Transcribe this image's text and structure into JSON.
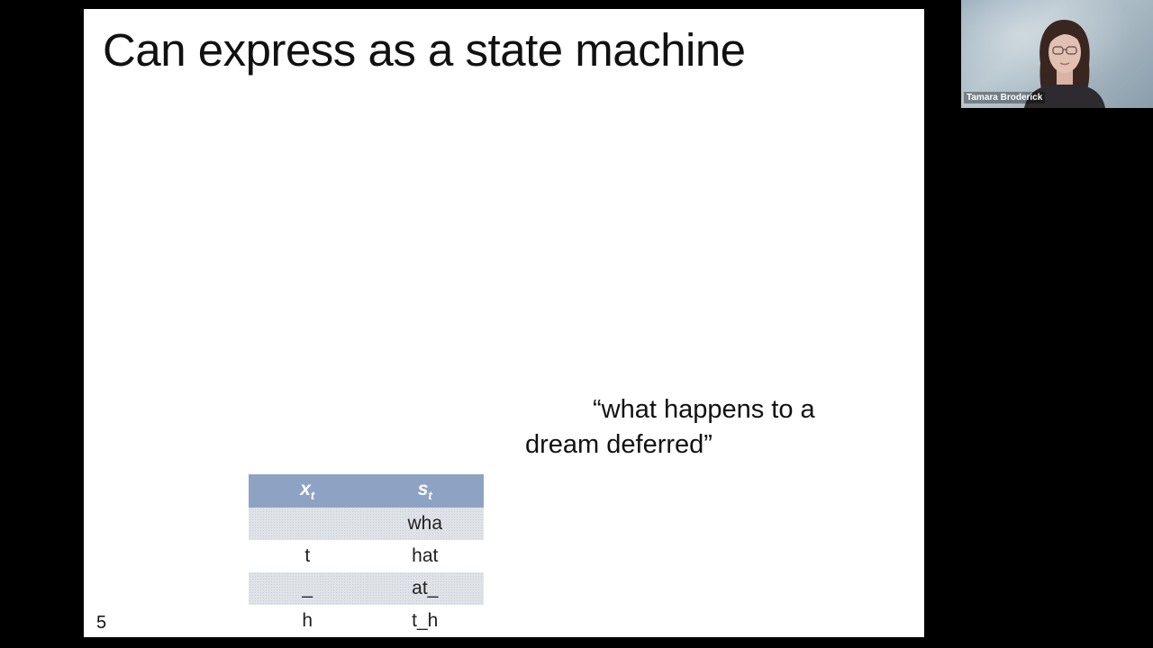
{
  "slide": {
    "title": "Can express as a state machine",
    "quote": {
      "line1": "“what happens to a",
      "line2": "dream deferred”"
    },
    "table": {
      "headers": [
        {
          "base": "x",
          "sub": "t"
        },
        {
          "base": "s",
          "sub": "t"
        }
      ],
      "rows": [
        {
          "x": "",
          "s": "wha"
        },
        {
          "x": "t",
          "s": "hat"
        },
        {
          "x": "_",
          "s": "at_"
        },
        {
          "x": "h",
          "s": "t_h"
        }
      ]
    },
    "page_number": "5"
  },
  "video": {
    "participant_name": "Tamara Broderick"
  },
  "colors": {
    "background": "#000000",
    "slide_background": "#ffffff",
    "table_header": "#8ea3c4",
    "table_shaded_row": "#dfe3e8"
  },
  "icons": {
    "participant": "person-video-feed"
  }
}
